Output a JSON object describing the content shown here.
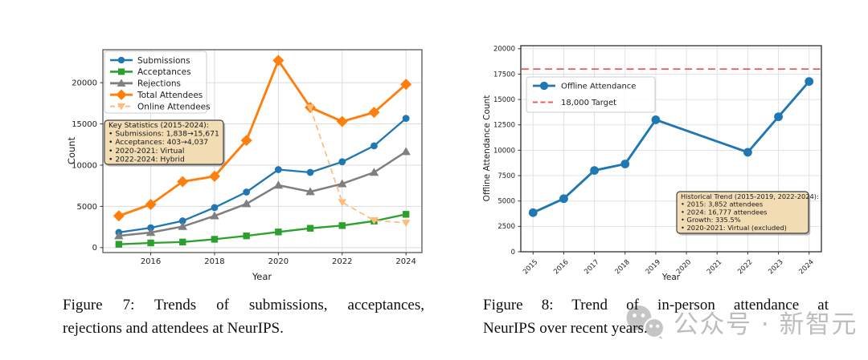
{
  "figure7": {
    "caption_line1": "Figure 7: Trends of submissions, acceptances,",
    "caption_line2": "rejections and attendees at NeurIPS."
  },
  "figure8": {
    "caption_line1": "Figure 8: Trend of in-person attendance at",
    "caption_line2": "NeurIPS over recent years."
  },
  "watermark": {
    "icon": "wechat-icon",
    "text": "公众号 · 新智元",
    "color": "#969696"
  },
  "chart_data": [
    {
      "type": "line",
      "title": "",
      "xlabel": "Year",
      "ylabel": "Count",
      "x": [
        2015,
        2016,
        2017,
        2018,
        2019,
        2020,
        2021,
        2022,
        2023,
        2024
      ],
      "xticks": [
        2016,
        2018,
        2020,
        2022,
        2024
      ],
      "yticks": [
        0,
        5000,
        10000,
        15000,
        20000
      ],
      "xlim": [
        2014.5,
        2024.5
      ],
      "ylim": [
        -600,
        24000
      ],
      "grid": true,
      "legend_position": "upper-left",
      "series": [
        {
          "name": "Submissions",
          "color": "#1f77b4",
          "marker": "circle",
          "linestyle": "solid",
          "values": [
            1838,
            2403,
            3240,
            4856,
            6743,
            9467,
            9122,
            10411,
            12343,
            15671
          ]
        },
        {
          "name": "Acceptances",
          "color": "#2ca02c",
          "marker": "square",
          "linestyle": "solid",
          "values": [
            403,
            569,
            678,
            1011,
            1428,
            1900,
            2344,
            2672,
            3218,
            4037
          ]
        },
        {
          "name": "Rejections",
          "color": "#7f7f7f",
          "marker": "triangle-up",
          "linestyle": "solid",
          "values": [
            1435,
            1834,
            2562,
            3845,
            5315,
            7567,
            6778,
            7739,
            9125,
            11634
          ]
        },
        {
          "name": "Total Attendees",
          "color": "#ff7f0e",
          "marker": "diamond",
          "linestyle": "solid",
          "values": [
            3852,
            5232,
            8008,
            8647,
            13000,
            22700,
            17000,
            15300,
            16400,
            19800
          ]
        },
        {
          "name": "Online Attendees",
          "color": "#ffbb78",
          "marker": "triangle-down",
          "linestyle": "dashed",
          "values": [
            null,
            null,
            null,
            null,
            null,
            null,
            17000,
            5500,
            3300,
            3000
          ]
        }
      ],
      "annotation": {
        "title": "Key Statistics (2015-2024):",
        "lines": [
          "• Submissions: 1,838→15,671",
          "• Acceptances: 403→4,037",
          "• 2020-2021: Virtual",
          "• 2022-2024: Hybrid"
        ],
        "bg": "#f5deb3",
        "border": "#3f3f3f"
      }
    },
    {
      "type": "line",
      "title": "",
      "xlabel": "Year",
      "ylabel": "Offline Attendance Count",
      "x": [
        2015,
        2016,
        2017,
        2018,
        2019,
        2020,
        2021,
        2022,
        2023,
        2024
      ],
      "xticks": [
        2015,
        2016,
        2017,
        2018,
        2019,
        2020,
        2021,
        2022,
        2023,
        2024
      ],
      "yticks": [
        0,
        2500,
        5000,
        7500,
        10000,
        12500,
        15000,
        17500,
        20000
      ],
      "xlim": [
        2014.6,
        2024.4
      ],
      "ylim": [
        0,
        20300
      ],
      "grid": true,
      "legend_position": "upper-left",
      "series": [
        {
          "name": "Offline Attendance",
          "color": "#1f77b4",
          "marker": "circle",
          "linestyle": "solid",
          "values": [
            3852,
            5232,
            8008,
            8647,
            13000,
            null,
            null,
            9800,
            13300,
            16777
          ]
        },
        {
          "name": "18,000 Target",
          "color": "#ef5b5b",
          "marker": "none",
          "linestyle": "dashed",
          "constant": 18000
        }
      ],
      "annotation": {
        "title": "Historical Trend (2015-2019, 2022-2024):",
        "lines": [
          "• 2015: 3,852 attendees",
          "• 2024: 16,777 attendees",
          "• Growth: 335.5%",
          "• 2020-2021: Virtual (excluded)"
        ],
        "bg": "#f5deb3",
        "border": "#3f3f3f"
      }
    }
  ]
}
